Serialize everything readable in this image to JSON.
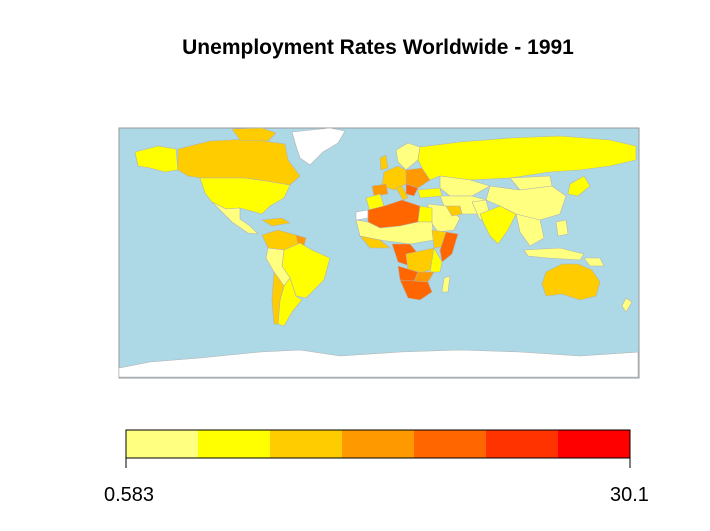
{
  "title": "Unemployment Rates Worldwide - 1991",
  "legend": {
    "min_label": "0.583",
    "max_label": "30.1",
    "colors": [
      "#ffff80",
      "#ffff00",
      "#ffcc00",
      "#ff9900",
      "#ff6600",
      "#ff3300",
      "#ff0000"
    ]
  },
  "map_colors": {
    "ocean": "#add8e6",
    "land_no_data": "#ffffff",
    "border": "#b3b3b3"
  }
}
